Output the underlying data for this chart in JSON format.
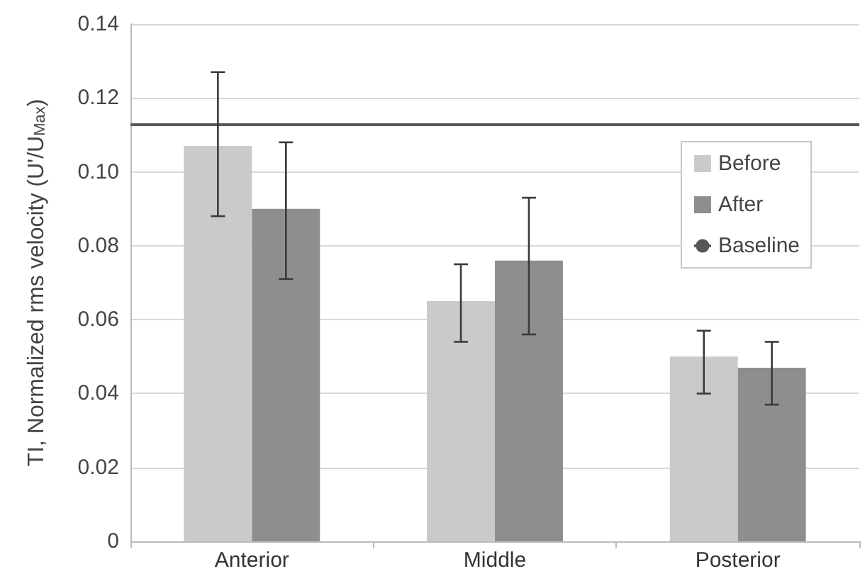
{
  "chart_data": {
    "type": "bar",
    "ylabel": "TI, Normalized rms velocity (U'/U$_{Max}$)",
    "categories": [
      "Anterior",
      "Middle",
      "Posterior"
    ],
    "series": [
      {
        "name": "Before",
        "color": "#c8cacc",
        "values": [
          0.107,
          0.065,
          0.05
        ],
        "errors": [
          [
            0.088,
            0.127
          ],
          [
            0.054,
            0.075
          ],
          [
            0.04,
            0.057
          ]
        ]
      },
      {
        "name": "After",
        "color": "#8c8e90",
        "values": [
          0.09,
          0.076,
          0.047
        ],
        "errors": [
          [
            0.071,
            0.108
          ],
          [
            0.056,
            0.093
          ],
          [
            0.037,
            0.054
          ]
        ]
      }
    ],
    "ref_lines": [
      {
        "axis": "y",
        "value": 0.113,
        "label": "Baseline",
        "color": "#555759",
        "line_style": "solid"
      }
    ],
    "ylim": [
      0,
      0.14
    ],
    "yticks": [
      0,
      0.02,
      0.04,
      0.06,
      0.08,
      {
        "value": 0.1,
        "label": "0.10"
      },
      0.12,
      0.14
    ],
    "grid": "y",
    "legend": "top right"
  }
}
